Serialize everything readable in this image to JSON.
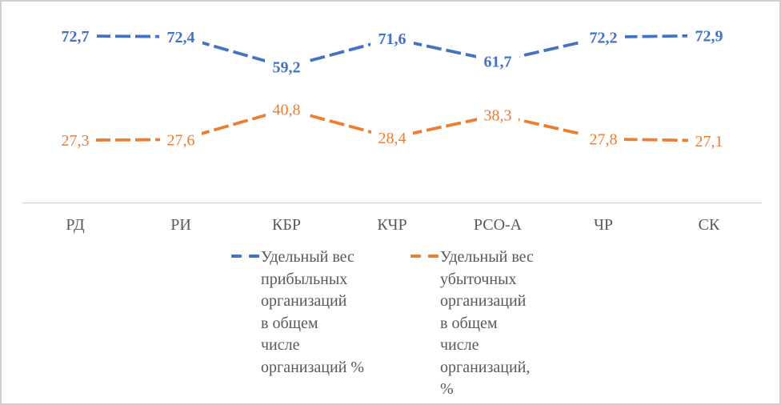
{
  "window": {
    "background": "#ffffff",
    "border_color": "#cfcfcf"
  },
  "chart_data": {
    "type": "line",
    "title": "",
    "xlabel": "",
    "ylabel": "",
    "categories": [
      "РД",
      "РИ",
      "КБР",
      "КЧР",
      "РСО-А",
      "ЧР",
      "СК"
    ],
    "series": [
      {
        "name": "Удельный вес прибыльных организаций в общем числе организаций %",
        "legend_label": "Удельный вес\nприбыльных\nорганизаций\nв общем\nчисле\nорганизаций %",
        "values": [
          72.7,
          72.4,
          59.2,
          71.6,
          61.7,
          72.2,
          72.9
        ],
        "point_labels": [
          "72,7",
          "72,4",
          "59,2",
          "71,6",
          "61,7",
          "72,2",
          "72,9"
        ],
        "color": "#4472C4",
        "label_bold": true,
        "line_style": "dashed"
      },
      {
        "name": "Удельный вес убыточных организаций в общем числе организаций, %",
        "legend_label": "Удельный вес\nубыточных\nорганизаций\nв общем\nчисле\nорганизаций,\n%",
        "values": [
          27.3,
          27.6,
          40.8,
          28.4,
          38.3,
          27.8,
          27.1
        ],
        "point_labels": [
          "27,3",
          "27,6",
          "40,8",
          "28,4",
          "38,3",
          "27,8",
          "27,1"
        ],
        "color": "#ED7D31",
        "label_bold": false,
        "line_style": "dashed"
      }
    ],
    "ylim": [
      0,
      80
    ],
    "grid": false,
    "legend_position": "bottom",
    "axis": {
      "line_color": "#D9D9D9",
      "tick_label_color": "#595959"
    }
  }
}
